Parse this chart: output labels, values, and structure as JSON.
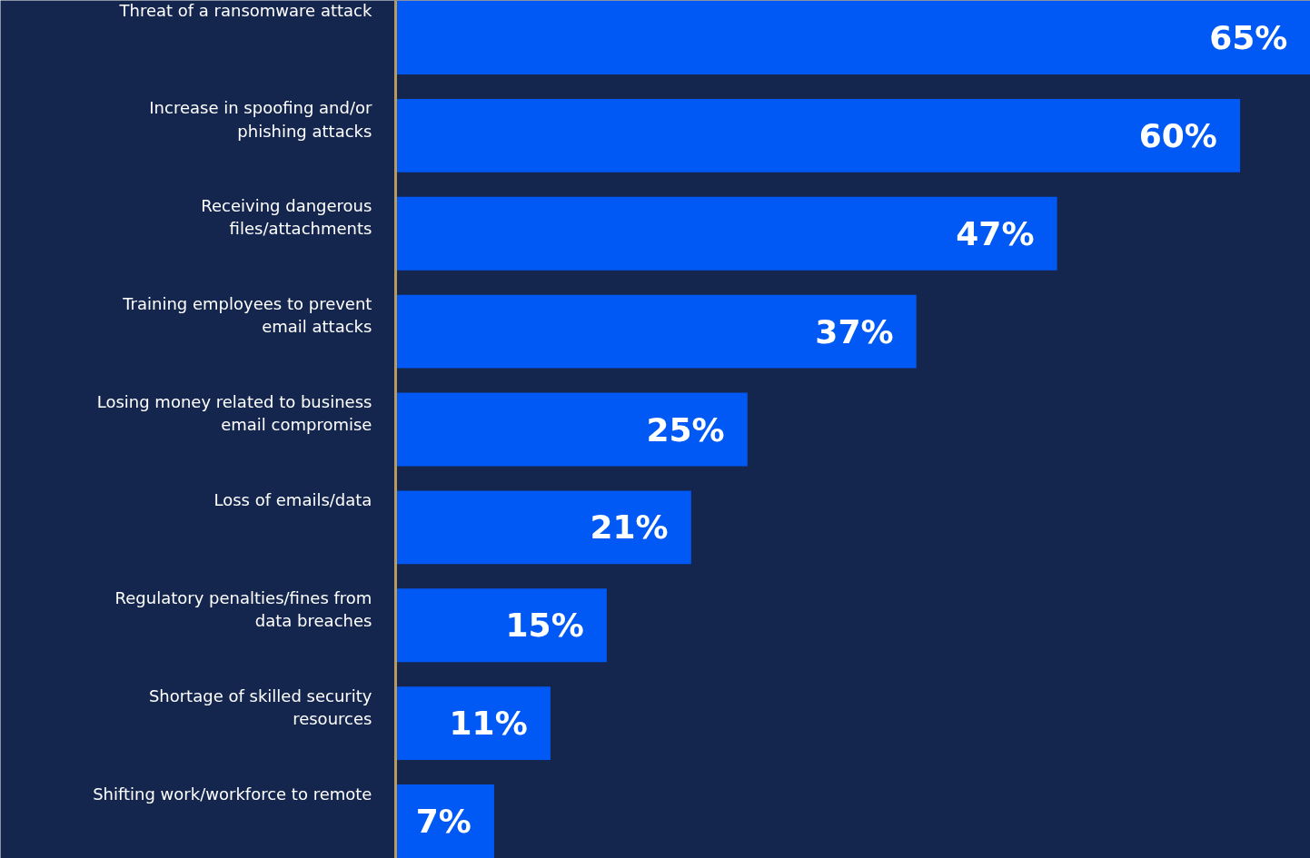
{
  "chart_data": {
    "type": "bar",
    "orientation": "horizontal",
    "categories": [
      "Threat of a ransomware attack",
      "Increase in spoofing and/or phishing attacks",
      "Receiving dangerous files/attachments",
      "Training employees to prevent email attacks",
      "Losing money related to business email compromise",
      "Loss of emails/data",
      "Regulatory penalties/fines from data breaches",
      "Shortage of skilled security resources",
      "Shifting work/workforce to remote"
    ],
    "values": [
      65,
      60,
      47,
      37,
      25,
      21,
      15,
      11,
      7
    ],
    "value_labels": [
      "65%",
      "60%",
      "47%",
      "37%",
      "25%",
      "21%",
      "15%",
      "11%",
      "7%"
    ],
    "color": "#0059f5"
  }
}
